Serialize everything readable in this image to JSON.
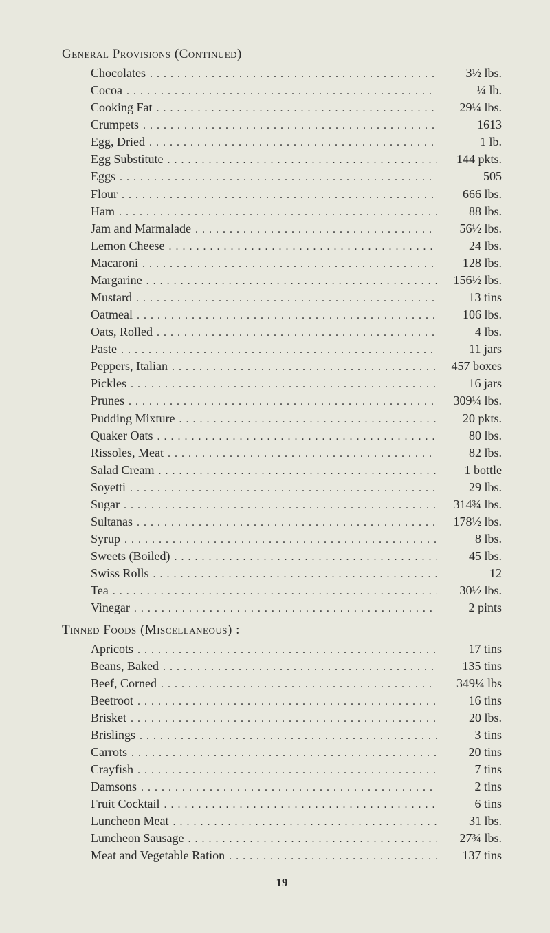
{
  "section1": {
    "header": "General Provisions (Continued)",
    "items": [
      {
        "label": "Chocolates",
        "value": "3½ lbs."
      },
      {
        "label": "Cocoa",
        "value": "¼ lb."
      },
      {
        "label": "Cooking Fat",
        "value": "29¼ lbs."
      },
      {
        "label": "Crumpets",
        "value": "1613"
      },
      {
        "label": "Egg, Dried",
        "value": "1 lb."
      },
      {
        "label": "Egg Substitute",
        "value": "144 pkts."
      },
      {
        "label": "Eggs",
        "value": "505"
      },
      {
        "label": "Flour",
        "value": "666 lbs."
      },
      {
        "label": "Ham",
        "value": "88 lbs."
      },
      {
        "label": "Jam and Marmalade",
        "value": "56½ lbs."
      },
      {
        "label": "Lemon Cheese",
        "value": "24 lbs."
      },
      {
        "label": "Macaroni",
        "value": "128 lbs."
      },
      {
        "label": "Margarine",
        "value": "156½ lbs."
      },
      {
        "label": "Mustard",
        "value": "13 tins"
      },
      {
        "label": "Oatmeal",
        "value": "106 lbs."
      },
      {
        "label": "Oats, Rolled",
        "value": "4 lbs."
      },
      {
        "label": "Paste",
        "value": "11 jars"
      },
      {
        "label": "Peppers, Italian",
        "value": "457 boxes"
      },
      {
        "label": "Pickles",
        "value": "16 jars"
      },
      {
        "label": "Prunes",
        "value": "309¼ lbs."
      },
      {
        "label": "Pudding Mixture",
        "value": "20 pkts."
      },
      {
        "label": "Quaker Oats",
        "value": "80 lbs."
      },
      {
        "label": "Rissoles, Meat",
        "value": "82 lbs."
      },
      {
        "label": "Salad Cream",
        "value": "1 bottle"
      },
      {
        "label": "Soyetti",
        "value": "29 lbs."
      },
      {
        "label": "Sugar",
        "value": "314¾ lbs."
      },
      {
        "label": "Sultanas",
        "value": "178½ lbs."
      },
      {
        "label": "Syrup",
        "value": "8 lbs."
      },
      {
        "label": "Sweets (Boiled)",
        "value": "45 lbs."
      },
      {
        "label": "Swiss Rolls",
        "value": "12"
      },
      {
        "label": "Tea",
        "value": "30½ lbs."
      },
      {
        "label": "Vinegar",
        "value": "2 pints"
      }
    ]
  },
  "section2": {
    "header": "Tinned Foods (Miscellaneous) :",
    "items": [
      {
        "label": "Apricots",
        "value": "17 tins"
      },
      {
        "label": "Beans, Baked",
        "value": "135 tins"
      },
      {
        "label": "Beef, Corned",
        "value": "349¼ lbs"
      },
      {
        "label": "Beetroot",
        "value": "16 tins"
      },
      {
        "label": "Brisket",
        "value": "20 lbs."
      },
      {
        "label": "Brislings",
        "value": "3 tins"
      },
      {
        "label": "Carrots",
        "value": "20 tins"
      },
      {
        "label": "Crayfish",
        "value": "7 tins"
      },
      {
        "label": "Damsons",
        "value": "2 tins"
      },
      {
        "label": "Fruit Cocktail",
        "value": "6 tins"
      },
      {
        "label": "Luncheon Meat",
        "value": "31 lbs."
      },
      {
        "label": "Luncheon Sausage",
        "value": "27¾ lbs."
      },
      {
        "label": "Meat and Vegetable Ration",
        "value": "137 tins"
      }
    ]
  },
  "pageNumber": "19"
}
